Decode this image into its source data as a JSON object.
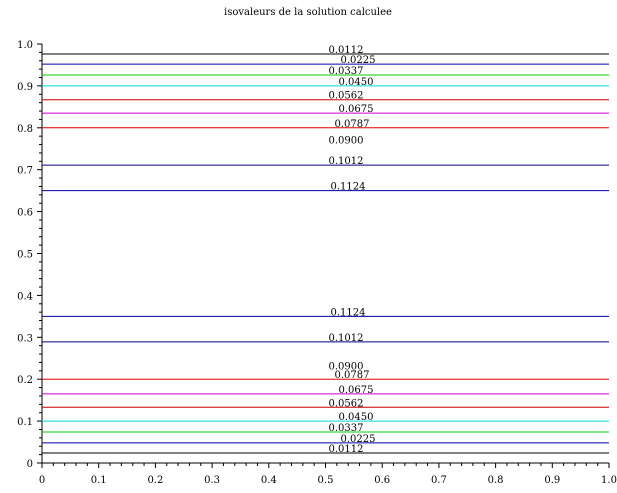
{
  "chart_data": {
    "type": "line",
    "title": "isovaleurs de la solution calculee",
    "xlabel": "",
    "ylabel": "",
    "xlim": [
      0,
      1
    ],
    "ylim": [
      0,
      1
    ],
    "x_ticks": [
      "0",
      "0.1",
      "0.2",
      "0.3",
      "0.4",
      "0.5",
      "0.6",
      "0.7",
      "0.8",
      "0.9",
      "1.0"
    ],
    "y_ticks": [
      "0",
      "0.1",
      "0.2",
      "0.3",
      "0.4",
      "0.5",
      "0.6",
      "0.7",
      "0.8",
      "0.9",
      "1.0"
    ],
    "grid": false,
    "series": [
      {
        "label": "0.0112",
        "color": "#000000",
        "values": [
          0.976,
          0.024
        ]
      },
      {
        "label": "0.0225",
        "color": "#0000aa",
        "values": [
          0.952,
          0.048
        ]
      },
      {
        "label": "0.0337",
        "color": "#00cc00",
        "values": [
          0.926,
          0.074
        ]
      },
      {
        "label": "0.0450",
        "color": "#00dddd",
        "values": [
          0.9,
          0.1
        ]
      },
      {
        "label": "0.0562",
        "color": "#cc0000",
        "values": [
          0.867,
          0.133
        ]
      },
      {
        "label": "0.0675",
        "color": "#cc00cc",
        "values": [
          0.835,
          0.165
        ]
      },
      {
        "label": "0.0787",
        "color": "#dd0000",
        "values": [
          0.8,
          0.2
        ]
      },
      {
        "label": "0.0900",
        "color": "#000000",
        "values": []
      },
      {
        "label": "0.1012",
        "color": "#000080",
        "values": [
          0.711,
          0.289
        ]
      },
      {
        "label": "0.1124",
        "color": "#0000aa",
        "values": [
          0.65,
          0.35
        ]
      }
    ]
  }
}
